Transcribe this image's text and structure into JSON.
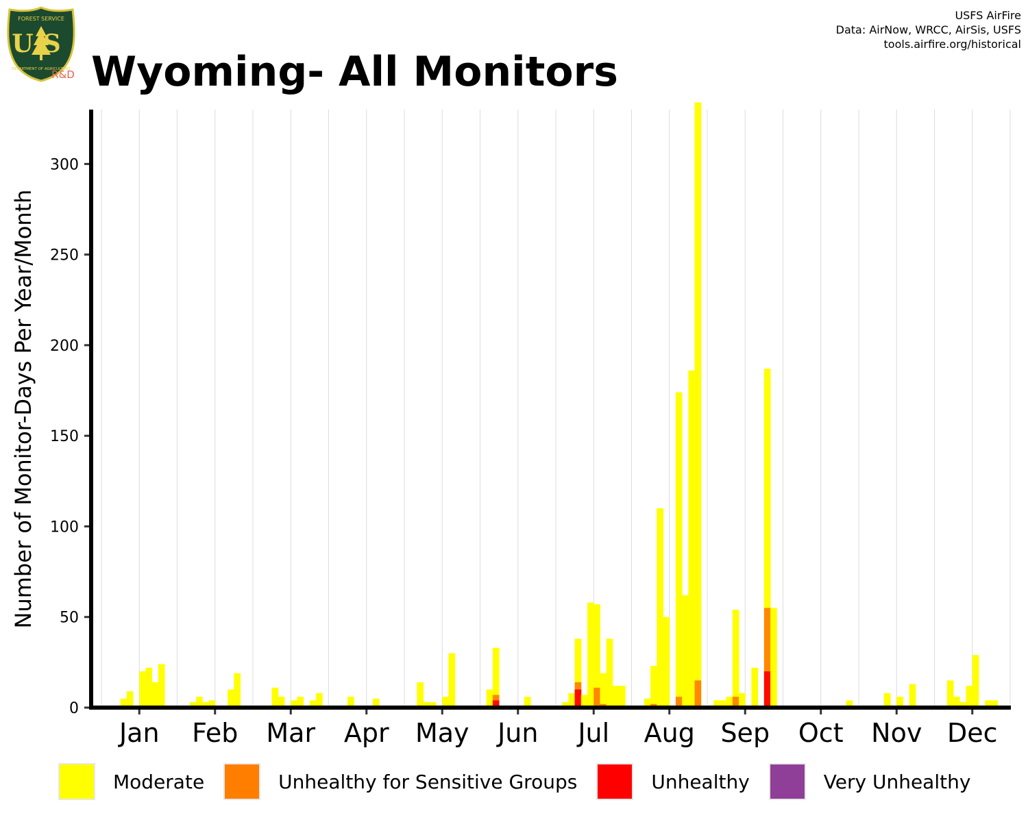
{
  "header": {
    "title": "Wyoming- All Monitors",
    "credits": [
      "USFS AirFire",
      "Data: AirNow, WRCC, AirSis, USFS",
      "tools.airfire.org/historical"
    ],
    "logo": {
      "top_text": "FOREST SERVICE",
      "monogram": "US",
      "bottom_text": "DEPARTMENT OF AGRICULTURE",
      "rd_text": "R&D",
      "colors": {
        "shield": "#1c4a2e",
        "rim": "#d8c23a",
        "text": "#e8d24a",
        "rd": "#e8614b"
      }
    }
  },
  "chart_data": {
    "type": "bar",
    "stacked": true,
    "ylabel": "Number of Monitor-Days Per Year/Month",
    "xlabel": "",
    "ylim": [
      0,
      330
    ],
    "yticks": [
      0,
      50,
      100,
      150,
      200,
      250,
      300
    ],
    "grid": "vertical",
    "legend_position": "bottom",
    "months": [
      "Jan",
      "Feb",
      "Mar",
      "Apr",
      "May",
      "Jun",
      "Jul",
      "Aug",
      "Sep",
      "Oct",
      "Nov",
      "Dec"
    ],
    "series": [
      {
        "name": "Moderate",
        "color": "#FFFF00"
      },
      {
        "name": "Unhealthy for Sensitive Groups",
        "color": "#FF7E00"
      },
      {
        "name": "Unhealthy",
        "color": "#FF0000"
      },
      {
        "name": "Very Unhealthy",
        "color": "#8F3F97"
      }
    ],
    "years_per_month": 12,
    "monthly_totals": {
      "Moderate": [
        [
          1,
          1,
          1,
          5,
          9,
          1,
          20,
          22,
          14,
          24,
          1,
          1
        ],
        [
          1,
          1,
          3,
          6,
          3,
          4,
          1,
          1,
          10,
          19,
          1,
          1
        ],
        [
          1,
          1,
          1,
          11,
          6,
          1,
          4,
          6,
          1,
          4,
          8,
          1
        ],
        [
          1,
          1,
          1,
          6,
          1,
          1,
          1,
          5,
          1,
          1,
          1,
          1
        ],
        [
          1,
          1,
          14,
          3,
          3,
          1,
          6,
          30,
          1,
          1,
          1,
          1
        ],
        [
          1,
          10,
          33,
          1,
          1,
          1,
          1,
          6,
          1,
          1,
          1,
          1
        ],
        [
          1,
          3,
          8,
          38,
          7,
          58,
          57,
          19,
          38,
          12,
          12,
          1
        ],
        [
          1,
          1,
          5,
          23,
          110,
          50,
          1,
          174,
          62,
          186,
          334,
          1
        ],
        [
          1,
          4,
          4,
          6,
          54,
          8,
          1,
          22,
          1,
          187,
          55,
          1
        ],
        [
          1,
          1,
          1,
          1,
          1,
          1,
          1,
          1,
          1,
          1,
          4,
          1
        ],
        [
          1,
          1,
          1,
          1,
          8,
          1,
          6,
          1,
          13,
          1,
          1,
          1
        ],
        [
          1,
          1,
          15,
          6,
          3,
          12,
          29,
          1,
          4,
          4,
          1,
          1
        ]
      ],
      "Unhealthy for Sensitive Groups": [
        [
          0,
          0,
          0,
          0,
          0,
          0,
          0,
          0,
          0,
          0,
          0,
          0
        ],
        [
          0,
          0,
          0,
          0,
          0,
          0,
          0,
          0,
          0,
          0,
          0,
          0
        ],
        [
          0,
          0,
          0,
          0,
          0,
          0,
          0,
          0,
          0,
          0,
          0,
          0
        ],
        [
          0,
          0,
          0,
          0,
          0,
          0,
          0,
          0,
          0,
          0,
          0,
          0
        ],
        [
          0,
          0,
          0,
          0,
          0,
          0,
          0,
          0,
          0,
          0,
          0,
          0
        ],
        [
          0,
          0,
          7,
          0,
          0,
          0,
          0,
          0,
          0,
          0,
          0,
          0
        ],
        [
          0,
          0,
          0,
          14,
          0,
          0,
          11,
          2,
          0,
          0,
          0,
          0
        ],
        [
          0,
          0,
          0,
          2,
          0,
          0,
          0,
          6,
          0,
          0,
          15,
          0
        ],
        [
          0,
          0,
          0,
          0,
          6,
          0,
          0,
          0,
          0,
          55,
          0,
          0
        ],
        [
          0,
          0,
          0,
          0,
          0,
          0,
          0,
          0,
          0,
          0,
          0,
          0
        ],
        [
          0,
          0,
          0,
          0,
          0,
          0,
          0,
          0,
          0,
          0,
          0,
          0
        ],
        [
          0,
          0,
          0,
          0,
          0,
          0,
          0,
          0,
          0,
          0,
          0,
          0
        ]
      ],
      "Unhealthy": [
        [
          0,
          0,
          0,
          0,
          0,
          0,
          0,
          0,
          0,
          0,
          0,
          0
        ],
        [
          0,
          0,
          0,
          0,
          0,
          0,
          0,
          0,
          0,
          0,
          0,
          0
        ],
        [
          0,
          0,
          0,
          0,
          0,
          0,
          0,
          0,
          0,
          0,
          0,
          0
        ],
        [
          0,
          0,
          0,
          0,
          0,
          0,
          0,
          0,
          0,
          0,
          0,
          0
        ],
        [
          0,
          0,
          0,
          0,
          0,
          0,
          0,
          0,
          0,
          0,
          0,
          0
        ],
        [
          0,
          0,
          4,
          0,
          0,
          0,
          0,
          0,
          0,
          0,
          0,
          0
        ],
        [
          0,
          0,
          0,
          10,
          0,
          0,
          0,
          0,
          0,
          0,
          0,
          0
        ],
        [
          0,
          0,
          0,
          1,
          0,
          0,
          0,
          0,
          0,
          0,
          0,
          0
        ],
        [
          0,
          0,
          0,
          0,
          0,
          0,
          0,
          0,
          0,
          20,
          0,
          0
        ],
        [
          0,
          0,
          0,
          0,
          0,
          0,
          0,
          0,
          0,
          0,
          0,
          0
        ],
        [
          0,
          0,
          0,
          0,
          0,
          0,
          0,
          0,
          0,
          0,
          0,
          0
        ],
        [
          0,
          0,
          0,
          0,
          0,
          0,
          0,
          0,
          0,
          0,
          0,
          0
        ]
      ],
      "Very Unhealthy": [
        [
          0,
          0,
          0,
          0,
          0,
          0,
          0,
          0,
          0,
          0,
          0,
          0
        ],
        [
          0,
          0,
          0,
          0,
          0,
          0,
          0,
          0,
          0,
          0,
          0,
          0
        ],
        [
          0,
          0,
          0,
          0,
          0,
          0,
          0,
          0,
          0,
          0,
          0,
          0
        ],
        [
          0,
          0,
          0,
          0,
          0,
          0,
          0,
          0,
          0,
          0,
          0,
          0
        ],
        [
          0,
          0,
          0,
          0,
          0,
          0,
          0,
          0,
          0,
          0,
          0,
          0
        ],
        [
          0,
          0,
          0,
          0,
          0,
          0,
          0,
          0,
          0,
          0,
          0,
          0
        ],
        [
          0,
          0,
          0,
          0,
          0,
          0,
          0,
          0,
          0,
          0,
          0,
          0
        ],
        [
          0,
          0,
          0,
          0,
          0,
          0,
          0,
          0,
          0,
          0,
          0,
          0
        ],
        [
          0,
          0,
          0,
          0,
          0,
          0,
          0,
          0,
          0,
          0,
          0,
          0
        ],
        [
          0,
          0,
          0,
          0,
          0,
          0,
          0,
          0,
          0,
          0,
          0,
          0
        ],
        [
          0,
          0,
          0,
          0,
          0,
          0,
          0,
          0,
          0,
          0,
          0,
          0
        ],
        [
          0,
          0,
          0,
          0,
          0,
          0,
          0,
          0,
          0,
          0,
          0,
          0
        ]
      ]
    }
  }
}
